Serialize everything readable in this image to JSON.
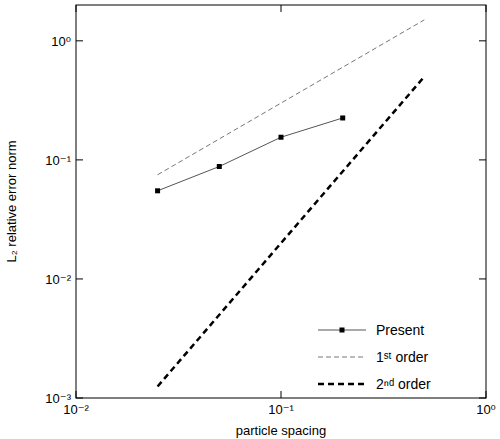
{
  "chart_data": {
    "type": "line",
    "x_label": "particle spacing",
    "y_label": "L₂ relative error norm",
    "log": true,
    "grid": false,
    "legend": "lower-right",
    "xlim": [
      0.01,
      1
    ],
    "ylim": [
      0.001,
      2
    ],
    "xticks": [
      {
        "value": 0.01,
        "label": "10⁻²"
      },
      {
        "value": 0.1,
        "label": "10⁻¹"
      },
      {
        "value": 1,
        "label": "10⁰"
      }
    ],
    "yticks": [
      {
        "value": 0.001,
        "label": "10⁻³"
      },
      {
        "value": 0.01,
        "label": "10⁻²"
      },
      {
        "value": 0.1,
        "label": "10⁻¹"
      },
      {
        "value": 1,
        "label": "10⁰"
      }
    ],
    "series": [
      {
        "name": "Present",
        "color": "#555555",
        "marker": "square",
        "line_style": "solid",
        "x": [
          0.025,
          0.05,
          0.1,
          0.2
        ],
        "values": [
          0.055,
          0.088,
          0.155,
          0.225
        ]
      },
      {
        "name": "1ˢᵗ order",
        "color": "#777777",
        "marker": "none",
        "line_style": "dashed",
        "x": [
          0.025,
          0.5
        ],
        "values": [
          0.075,
          1.5
        ]
      },
      {
        "name": "2ⁿᵈ order",
        "color": "#000000",
        "marker": "none",
        "line_style": "dashed",
        "x": [
          0.025,
          0.5
        ],
        "values": [
          0.00125,
          0.5
        ]
      }
    ]
  }
}
